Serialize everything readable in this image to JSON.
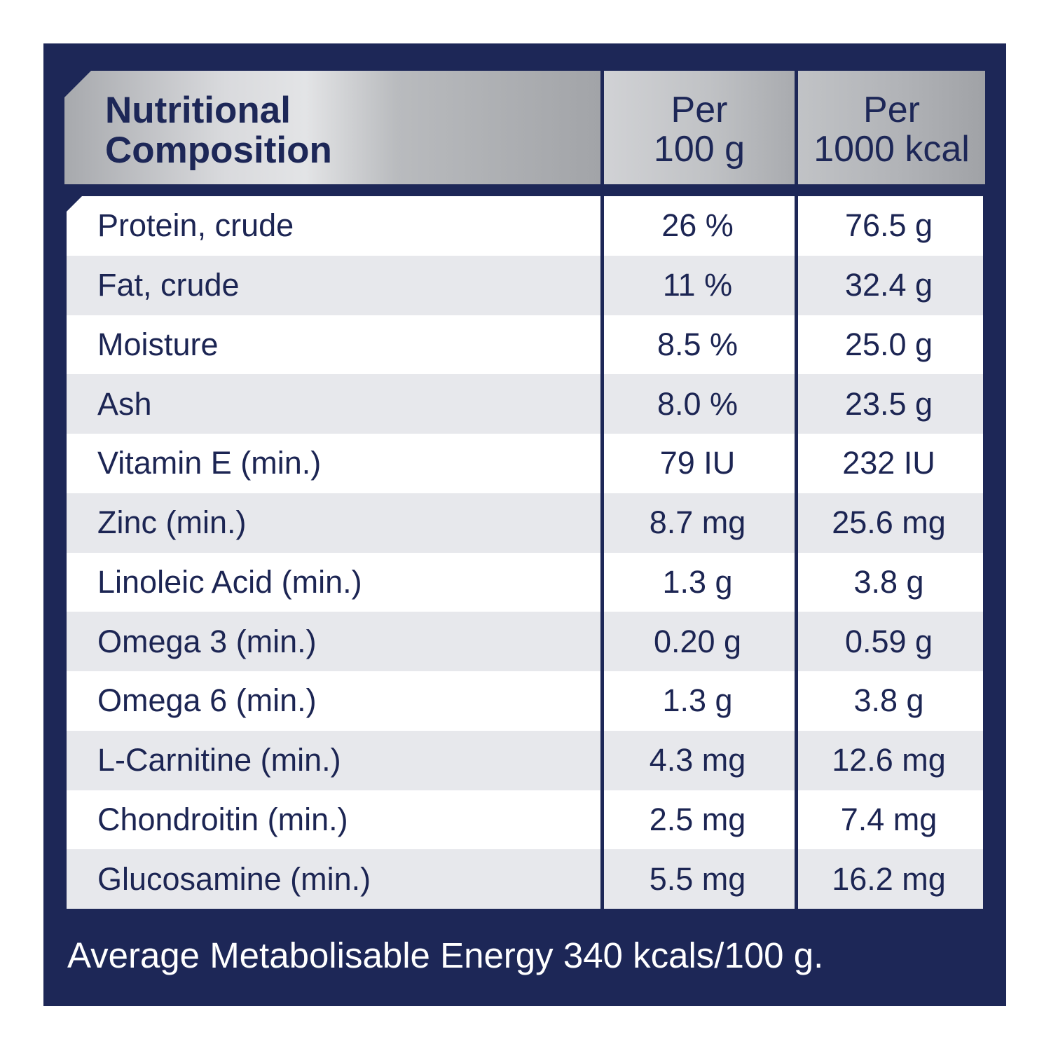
{
  "table": {
    "header": {
      "title_line1": "Nutritional",
      "title_line2": "Composition",
      "col1_line1": "Per",
      "col1_line2": "100 g",
      "col2_line1": "Per",
      "col2_line2": "1000 kcal"
    },
    "rows": [
      {
        "name": "Protein, crude",
        "per_100g": "26 %",
        "per_1000kcal": "76.5 g"
      },
      {
        "name": "Fat, crude",
        "per_100g": "11 %",
        "per_1000kcal": "32.4 g"
      },
      {
        "name": "Moisture",
        "per_100g": "8.5 %",
        "per_1000kcal": "25.0 g"
      },
      {
        "name": "Ash",
        "per_100g": "8.0 %",
        "per_1000kcal": "23.5 g"
      },
      {
        "name": "Vitamin E (min.)",
        "per_100g": "79 IU",
        "per_1000kcal": "232 IU"
      },
      {
        "name": "Zinc (min.)",
        "per_100g": "8.7 mg",
        "per_1000kcal": "25.6 mg"
      },
      {
        "name": "Linoleic Acid (min.)",
        "per_100g": "1.3 g",
        "per_1000kcal": "3.8 g"
      },
      {
        "name": "Omega 3 (min.)",
        "per_100g": "0.20 g",
        "per_1000kcal": "0.59 g"
      },
      {
        "name": "Omega 6 (min.)",
        "per_100g": "1.3 g",
        "per_1000kcal": "3.8 g"
      },
      {
        "name": "L-Carnitine (min.)",
        "per_100g": "4.3 mg",
        "per_1000kcal": "12.6 mg"
      },
      {
        "name": "Chondroitin (min.)",
        "per_100g": "2.5 mg",
        "per_1000kcal": "7.4 mg"
      },
      {
        "name": "Glucosamine (min.)",
        "per_100g": "5.5 mg",
        "per_1000kcal": "16.2 mg"
      }
    ]
  },
  "footer": {
    "text": "Average Metabolisable Energy 340 kcals/100 g."
  },
  "colors": {
    "panel": "#1d2757",
    "text": "#1c2553",
    "row_alt": "#e7e8ec",
    "header_silver": "#c6c8cb"
  }
}
